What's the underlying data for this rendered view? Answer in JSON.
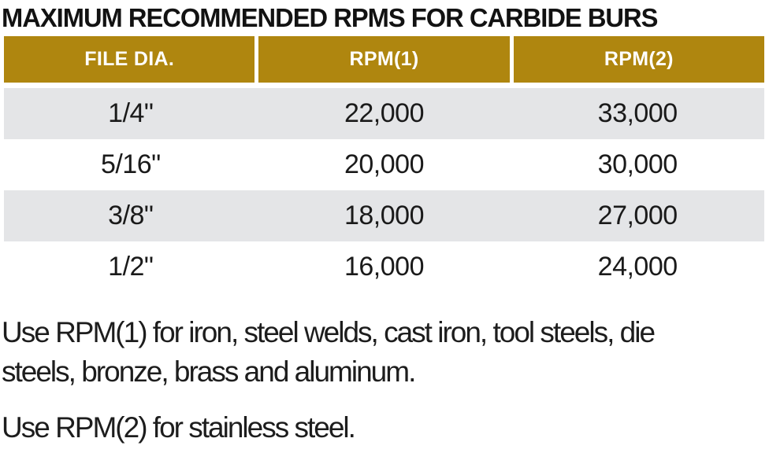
{
  "page": {
    "title": "MAXIMUM RECOMMENDED RPMS FOR CARBIDE BURS"
  },
  "table": {
    "headers": [
      "FILE DIA.",
      "RPM(1)",
      "RPM(2)"
    ],
    "rows": [
      {
        "file_dia": "1/4\"",
        "rpm1": "22,000",
        "rpm2": "33,000"
      },
      {
        "file_dia": "5/16\"",
        "rpm1": "20,000",
        "rpm2": "30,000"
      },
      {
        "file_dia": "3/8\"",
        "rpm1": "18,000",
        "rpm2": "27,000"
      },
      {
        "file_dia": "1/2\"",
        "rpm1": "16,000",
        "rpm2": "24,000"
      }
    ]
  },
  "notes": [
    "Use RPM(1) for iron, steel welds, cast iron, tool steels, die steels, bronze, brass and aluminum.",
    "Use RPM(2) for stainless steel."
  ],
  "colors": {
    "header_bg": "#AF860F",
    "header_text": "#FFFFFF",
    "row_alt_bg": "#E4E5E7",
    "row_bg": "#FFFFFF",
    "text": "#1A1A1A"
  },
  "chart_data": {
    "type": "table",
    "title": "MAXIMUM RECOMMENDED RPMS FOR CARBIDE BURS",
    "columns": [
      "FILE DIA.",
      "RPM(1)",
      "RPM(2)"
    ],
    "rows": [
      [
        "1/4\"",
        22000,
        33000
      ],
      [
        "5/16\"",
        20000,
        30000
      ],
      [
        "3/8\"",
        18000,
        27000
      ],
      [
        "1/2\"",
        16000,
        24000
      ]
    ],
    "notes": [
      "Use RPM(1) for iron, steel welds, cast iron, tool steels, die steels, bronze, brass and aluminum.",
      "Use RPM(2) for stainless steel."
    ]
  }
}
